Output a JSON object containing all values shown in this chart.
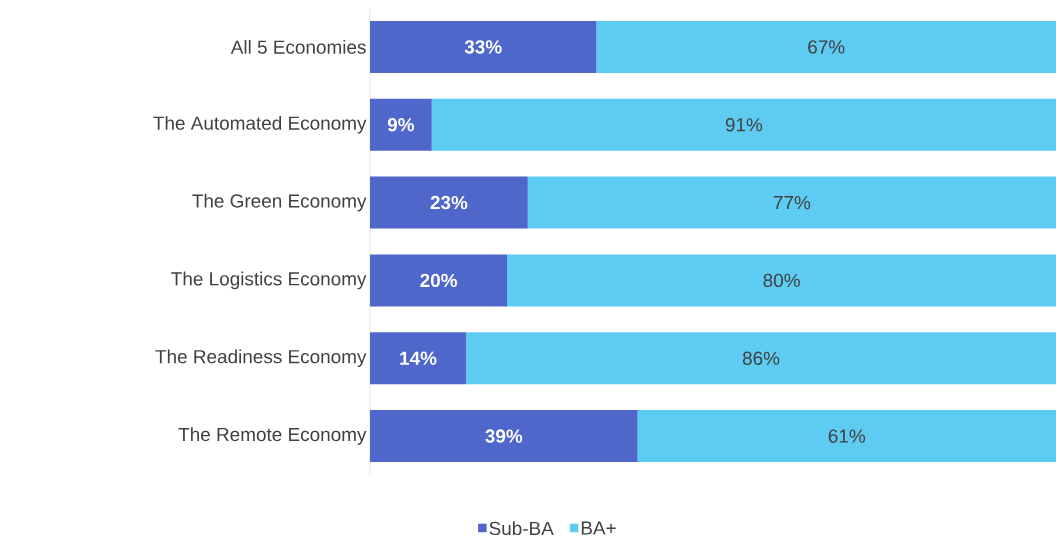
{
  "chart_data": {
    "type": "bar",
    "orientation": "horizontal",
    "stacked": true,
    "categories": [
      "All 5 Economies",
      "The Automated Economy",
      "The Green Economy",
      "The Logistics Economy",
      "The Readiness Economy",
      "The Remote Economy"
    ],
    "xlim": [
      0,
      100
    ],
    "tick_labels": "y",
    "legend": "bottom",
    "series": [
      {
        "name": "Sub-BA",
        "color": "#4f66cb",
        "values": [
          33,
          9,
          23,
          20,
          14,
          39
        ],
        "value_labels": [
          "33%",
          "9%",
          "23%",
          "20%",
          "14%",
          "39%"
        ]
      },
      {
        "name": "BA+",
        "color": "#5ecbf2",
        "values": [
          67,
          91,
          77,
          80,
          86,
          61
        ],
        "value_labels": [
          "67%",
          "91%",
          "77%",
          "80%",
          "86%",
          "61%"
        ]
      }
    ]
  }
}
